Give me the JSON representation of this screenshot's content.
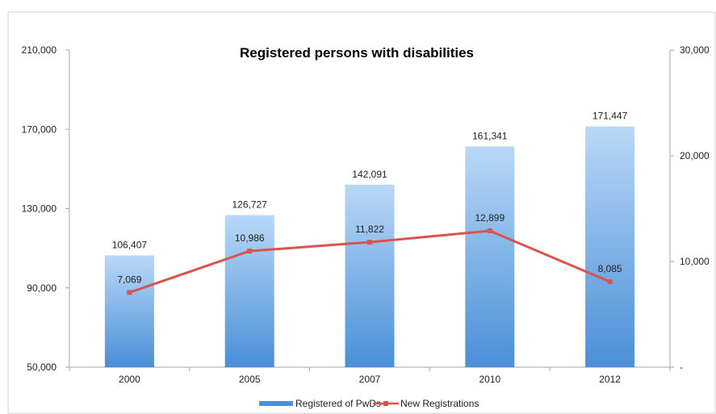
{
  "chart_data": {
    "type": "bar",
    "title": "Registered persons with disabilities",
    "categories": [
      "2000",
      "2005",
      "2007",
      "2010",
      "2012"
    ],
    "series": [
      {
        "name": "Registered of PwDs",
        "type": "bar",
        "axis": "left",
        "values": [
          106407,
          126727,
          142091,
          161341,
          171447
        ],
        "labels": [
          "106,407",
          "126,727",
          "142,091",
          "161,341",
          "171,447"
        ]
      },
      {
        "name": "New Registrations",
        "type": "line",
        "axis": "right",
        "values": [
          7069,
          10986,
          11822,
          12899,
          8085
        ],
        "labels": [
          "7,069",
          "10,986",
          "11,822",
          "12,899",
          "8,085"
        ]
      }
    ],
    "y_left": {
      "ylim": [
        50000,
        210000
      ],
      "ticks": [
        50000,
        90000,
        130000,
        170000,
        210000
      ],
      "tick_labels": [
        "50,000",
        "90,000",
        "130,000",
        "170,000",
        "210,000"
      ]
    },
    "y_right": {
      "ylim": [
        0,
        30000
      ],
      "ticks": [
        0,
        10000,
        20000,
        30000
      ],
      "tick_labels": [
        "-",
        "10,000",
        "20,000",
        "30,000"
      ]
    },
    "grid": false,
    "legend_position": "bottom",
    "colors": {
      "bar_top": "#b9d8f7",
      "bar_bottom": "#4a8fd8",
      "line": "#d9534f",
      "axis": "#a6a6a6"
    }
  }
}
